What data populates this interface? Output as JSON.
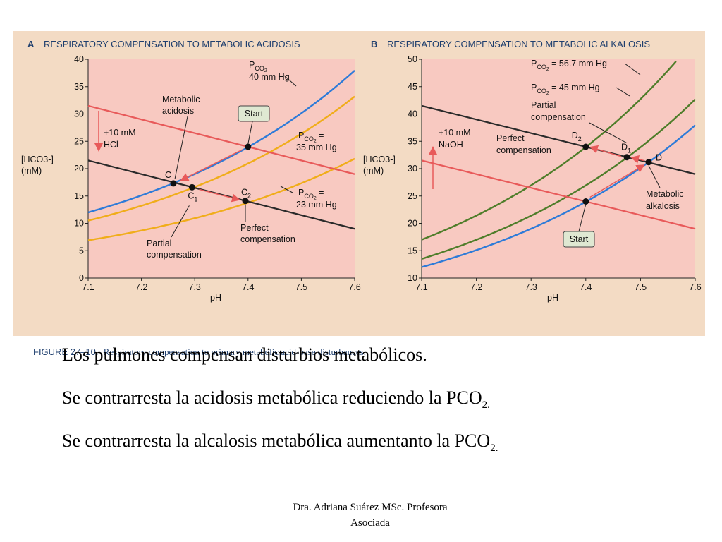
{
  "chart_data": [
    {
      "panel_letter": "A",
      "title": "RESPIRATORY COMPENSATION TO METABOLIC ACIDOSIS",
      "type": "line",
      "xlabel": "pH",
      "ylabel_line1": "[HCO3-]",
      "ylabel_line2": "(mM)",
      "xlim": [
        7.1,
        7.6
      ],
      "ylim": [
        0,
        40
      ],
      "x_ticks": [
        "7.1",
        "7.2",
        "7.3",
        "7.4",
        "7.5",
        "7.6"
      ],
      "y_ticks": [
        "0",
        "5",
        "10",
        "15",
        "20",
        "25",
        "30",
        "35",
        "40"
      ],
      "isobars": [
        {
          "pco2": 40,
          "color": "#2e7bd8",
          "label_top": "PCO2 =",
          "label_bottom": "40 mm Hg"
        },
        {
          "pco2": 35,
          "color": "#f0ad1a",
          "label_top": "PCO2 =",
          "label_bottom": "35 mm Hg"
        },
        {
          "pco2": 23,
          "color": "#f0ad1a",
          "label_top": "PCO2 =",
          "label_bottom": "23 mm Hg"
        }
      ],
      "buffer_lines": [
        {
          "color": "#e85a5a",
          "x": [
            7.1,
            7.6
          ],
          "y": [
            31.5,
            19
          ]
        },
        {
          "color": "#2a2a2a",
          "x": [
            7.1,
            7.6
          ],
          "y": [
            21.5,
            9
          ]
        }
      ],
      "points": [
        {
          "name": "Start",
          "x": 7.4,
          "y": 24
        },
        {
          "name": "C",
          "x": 7.26,
          "y": 17.3
        },
        {
          "name": "C1",
          "x": 7.295,
          "y": 16.6
        },
        {
          "name": "C2",
          "x": 7.395,
          "y": 14.1
        }
      ],
      "annotations": {
        "start": "Start",
        "metabolic_line1": "Metabolic",
        "metabolic_line2": "acidosis",
        "shift_line1": "+10 mM",
        "shift_line2": "HCl",
        "partial_line1": "Partial",
        "partial_line2": "compensation",
        "perfect_line1": "Perfect",
        "perfect_line2": "compensation"
      }
    },
    {
      "panel_letter": "B",
      "title": "RESPIRATORY COMPENSATION TO METABOLIC ALKALOSIS",
      "type": "line",
      "xlabel": "pH",
      "ylabel_line1": "[HCO3-]",
      "ylabel_line2": "(mM)",
      "xlim": [
        7.1,
        7.6
      ],
      "ylim": [
        10,
        50
      ],
      "x_ticks": [
        "7.1",
        "7.2",
        "7.3",
        "7.4",
        "7.5",
        "7.6"
      ],
      "y_ticks": [
        "10",
        "15",
        "20",
        "25",
        "30",
        "35",
        "40",
        "45",
        "50"
      ],
      "isobars": [
        {
          "pco2": 56.7,
          "color": "#4f7d2a",
          "label": "PCO2 = 56.7 mm Hg"
        },
        {
          "pco2": 45,
          "color": "#4f7d2a",
          "label": "PCO2 = 45 mm Hg"
        },
        {
          "pco2": 40,
          "color": "#2e7bd8",
          "label": ""
        }
      ],
      "buffer_lines": [
        {
          "color": "#e85a5a",
          "x": [
            7.1,
            7.6
          ],
          "y": [
            31.5,
            19
          ]
        },
        {
          "color": "#2a2a2a",
          "x": [
            7.1,
            7.6
          ],
          "y": [
            41.5,
            29
          ]
        }
      ],
      "points": [
        {
          "name": "Start",
          "x": 7.4,
          "y": 24
        },
        {
          "name": "D",
          "x": 7.515,
          "y": 31.2
        },
        {
          "name": "D1",
          "x": 7.475,
          "y": 32.1
        },
        {
          "name": "D2",
          "x": 7.4,
          "y": 34
        }
      ],
      "annotations": {
        "start": "Start",
        "metabolic_line1": "Metabolic",
        "metabolic_line2": "alkalosis",
        "shift_line1": "+10 mM",
        "shift_line2": "NaOH",
        "partial_line1": "Partial",
        "partial_line2": "compensation",
        "perfect_line1": "Perfect",
        "perfect_line2": "compensation"
      }
    }
  ],
  "caption": {
    "figure": "FIGURE 27–10.",
    "text": "Respiratory compensation to primary metabolic acid-base disturbances."
  },
  "bullets": [
    {
      "text": "Los pulmones compensan disturbios metabólicos.",
      "sub": ""
    },
    {
      "text": "Se contrarresta la acidosis metabólica reduciendo la PCO",
      "sub": "2."
    },
    {
      "text": "Se contrarresta la alcalosis metabólica aumentanto la PCO",
      "sub": "2."
    }
  ],
  "footer": {
    "line1": "Dra. Adriana Suárez MSc.  Profesora",
    "line2": "Asociada"
  },
  "colors": {
    "panel_bg": "#f3dbc4",
    "plot_bg": "#f8c9c1",
    "title": "#1f3f6e",
    "arrow": "#e85a5a",
    "label_box": "#dfe8d2"
  }
}
